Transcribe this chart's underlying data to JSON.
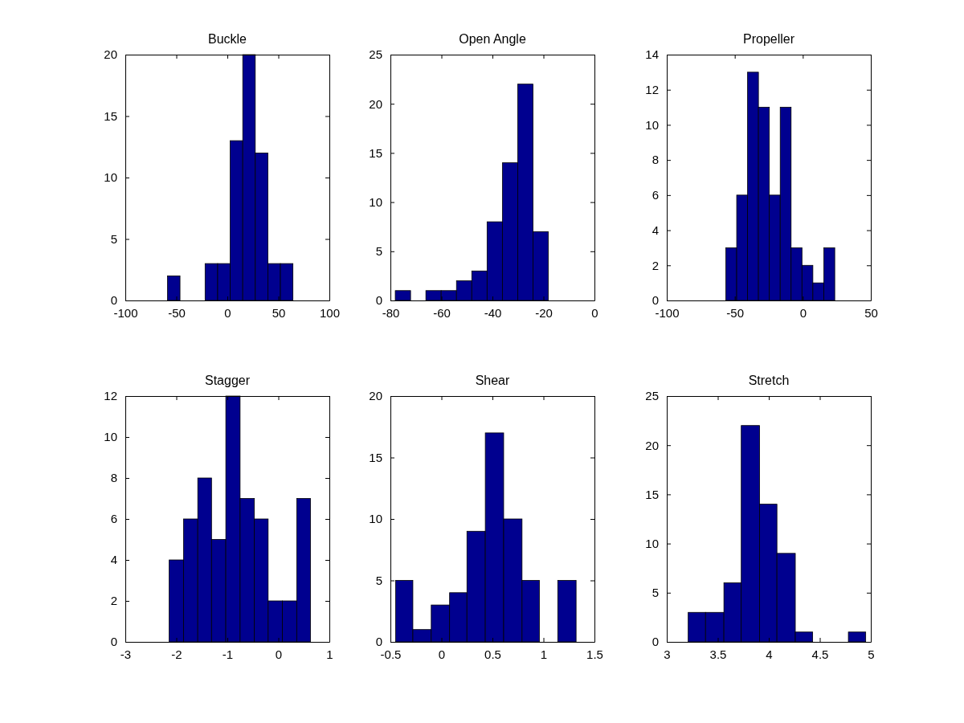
{
  "chart_data": [
    {
      "type": "histogram",
      "title": "Buckle",
      "color": "#00008f",
      "bins": [
        -58.7,
        -46.4,
        -21.8,
        -9.5,
        2.8,
        15.1,
        27.4,
        39.7,
        52,
        64.3
      ],
      "values": [
        2,
        0,
        3,
        3,
        13,
        20,
        12,
        3,
        3
      ],
      "xlim": [
        -100,
        100
      ],
      "xticks": [
        -100,
        -50,
        0,
        50,
        100
      ],
      "ylim": [
        0,
        20
      ],
      "yticks": [
        0,
        5,
        10,
        15,
        20
      ]
    },
    {
      "type": "histogram",
      "title": "Open Angle",
      "color": "#00008f",
      "bins": [
        -78.1,
        -72.1,
        -66.1,
        -60.1,
        -54.1,
        -48.1,
        -42.1,
        -36.1,
        -30.1,
        -24.1,
        -18.1
      ],
      "values": [
        1,
        0,
        1,
        1,
        2,
        3,
        8,
        14,
        22,
        7
      ],
      "xlim": [
        -80,
        0
      ],
      "xticks": [
        -80,
        -60,
        -40,
        -20,
        0
      ],
      "ylim": [
        0,
        25
      ],
      "yticks": [
        0,
        5,
        10,
        15,
        20,
        25
      ]
    },
    {
      "type": "histogram",
      "title": "Propeller",
      "color": "#00008f",
      "bins": [
        -56.6,
        -48.6,
        -40.6,
        -32.6,
        -24.6,
        -16.6,
        -8.6,
        -0.6,
        7.4,
        15.5,
        23.5
      ],
      "values": [
        3,
        6,
        13,
        11,
        6,
        11,
        3,
        2,
        1,
        3
      ],
      "xlim": [
        -100,
        50
      ],
      "xticks": [
        -100,
        -50,
        0,
        50
      ],
      "ylim": [
        0,
        14
      ],
      "yticks": [
        0,
        2,
        4,
        6,
        8,
        10,
        12,
        14
      ]
    },
    {
      "type": "histogram",
      "title": "Stagger",
      "color": "#00008f",
      "bins": [
        -2.14,
        -1.86,
        -1.58,
        -1.31,
        -1.03,
        -0.75,
        -0.47,
        -0.2,
        0.08,
        0.36,
        0.63
      ],
      "values": [
        4,
        6,
        8,
        5,
        12,
        7,
        6,
        2,
        2,
        7
      ],
      "xlim": [
        -3,
        1
      ],
      "xticks": [
        -3,
        -2,
        -1,
        0,
        1
      ],
      "ylim": [
        0,
        12
      ],
      "yticks": [
        0,
        2,
        4,
        6,
        8,
        10,
        12
      ]
    },
    {
      "type": "histogram",
      "title": "Shear",
      "color": "#00008f",
      "bins": [
        -0.45,
        -0.28,
        -0.1,
        0.08,
        0.25,
        0.43,
        0.61,
        0.79,
        0.96,
        1.14,
        1.32
      ],
      "values": [
        5,
        1,
        3,
        4,
        9,
        17,
        10,
        5,
        0,
        5
      ],
      "xlim": [
        -0.5,
        1.5
      ],
      "xticks": [
        -0.5,
        0,
        0.5,
        1,
        1.5
      ],
      "ylim": [
        0,
        20
      ],
      "yticks": [
        0,
        5,
        10,
        15,
        20
      ]
    },
    {
      "type": "histogram",
      "title": "Stretch",
      "color": "#00008f",
      "bins": [
        3.21,
        3.38,
        3.56,
        3.73,
        3.91,
        4.08,
        4.26,
        4.43,
        4.78,
        4.95
      ],
      "values": [
        3,
        3,
        6,
        22,
        14,
        9,
        1,
        0,
        1
      ],
      "xlim": [
        3,
        5
      ],
      "xticks": [
        3,
        3.5,
        4,
        4.5,
        5
      ],
      "ylim": [
        0,
        25
      ],
      "yticks": [
        0,
        5,
        10,
        15,
        20,
        25
      ]
    }
  ]
}
